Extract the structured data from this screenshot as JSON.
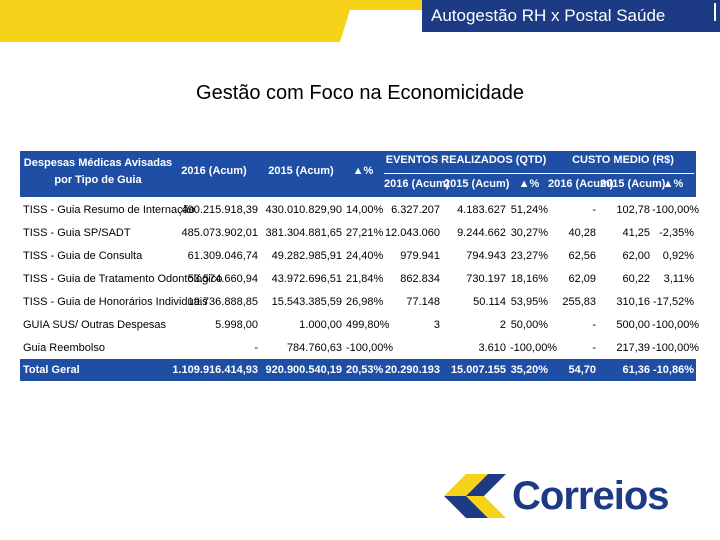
{
  "header": {
    "title": "Autogestão RH x Postal Saúde"
  },
  "page": {
    "title": "Gestão com Foco na Economicidade"
  },
  "table": {
    "col_label": "Despesas Médicas Avisadas por Tipo de Guia",
    "col_2016": "2016 (Acum)",
    "col_2015": "2015 (Acum)",
    "col_delta": "▲%",
    "group_eventos": "EVENTOS REALIZADOS (QTD)",
    "group_custo": "CUSTO MEDIO (R$)",
    "sub_ev_2016": "2016 (Acum)",
    "sub_ev_2015": "2015 (Acum)",
    "sub_ev_delta": "▲%",
    "sub_cm_2016": "2016 (Acum)",
    "sub_cm_2015": "2015 (Acum)",
    "sub_cm_delta": "▲%",
    "rows": [
      {
        "label": "TISS - Guia Resumo de Internação",
        "v2016": "490.215.918,39",
        "v2015": "430.010.829,90",
        "dv": "14,00%",
        "e2016": "6.327.207",
        "e2015": "4.183.627",
        "de": "51,24%",
        "c2016": "-",
        "c2015": "102,78",
        "dc": "-100,00%"
      },
      {
        "label": "TISS - Guia SP/SADT",
        "v2016": "485.073.902,01",
        "v2015": "381.304.881,65",
        "dv": "27,21%",
        "e2016": "12.043.060",
        "e2015": "9.244.662",
        "de": "30,27%",
        "c2016": "40,28",
        "c2015": "41,25",
        "dc": "-2,35%"
      },
      {
        "label": "TISS - Guia de Consulta",
        "v2016": "61.309.046,74",
        "v2015": "49.282.985,91",
        "dv": "24,40%",
        "e2016": "979.941",
        "e2015": "794.943",
        "de": "23,27%",
        "c2016": "62,56",
        "c2015": "62,00",
        "dc": "0,92%"
      },
      {
        "label": "TISS - Guia de Tratamento Odontológico",
        "v2016": "53.574.660,94",
        "v2015": "43.972.696,51",
        "dv": "21,84%",
        "e2016": "862.834",
        "e2015": "730.197",
        "de": "18,16%",
        "c2016": "62,09",
        "c2015": "60,22",
        "dc": "3,11%"
      },
      {
        "label": "TISS - Guia de Honorários Individuais",
        "v2016": "19.736.888,85",
        "v2015": "15.543.385,59",
        "dv": "26,98%",
        "e2016": "77.148",
        "e2015": "50.114",
        "de": "53,95%",
        "c2016": "255,83",
        "c2015": "310,16",
        "dc": "-17,52%"
      },
      {
        "label": "GUIA SUS/ Outras Despesas",
        "v2016": "5.998,00",
        "v2015": "1.000,00",
        "dv": "499,80%",
        "e2016": "3",
        "e2015": "2",
        "de": "50,00%",
        "c2016": "-",
        "c2015": "500,00",
        "dc": "-100,00%"
      },
      {
        "label": "Guia Reembolso",
        "v2016": "-",
        "v2015": "784.760,63",
        "dv": "-100,00%",
        "e2016": "",
        "e2015": "3.610",
        "de": "-100,00%",
        "c2016": "-",
        "c2015": "217,39",
        "dc": "-100,00%"
      }
    ],
    "total": {
      "label": "Total Geral",
      "v2016": "1.109.916.414,93",
      "v2015": "920.900.540,19",
      "dv": "20,53%",
      "e2016": "20.290.193",
      "e2015": "15.007.155",
      "de": "35,20%",
      "c2016": "54,70",
      "c2015": "61,36",
      "dc": "-10,86%"
    }
  },
  "logo": {
    "text": "Correios",
    "colors": {
      "yellow": "#f7d21a",
      "blue": "#1d3a85"
    }
  }
}
